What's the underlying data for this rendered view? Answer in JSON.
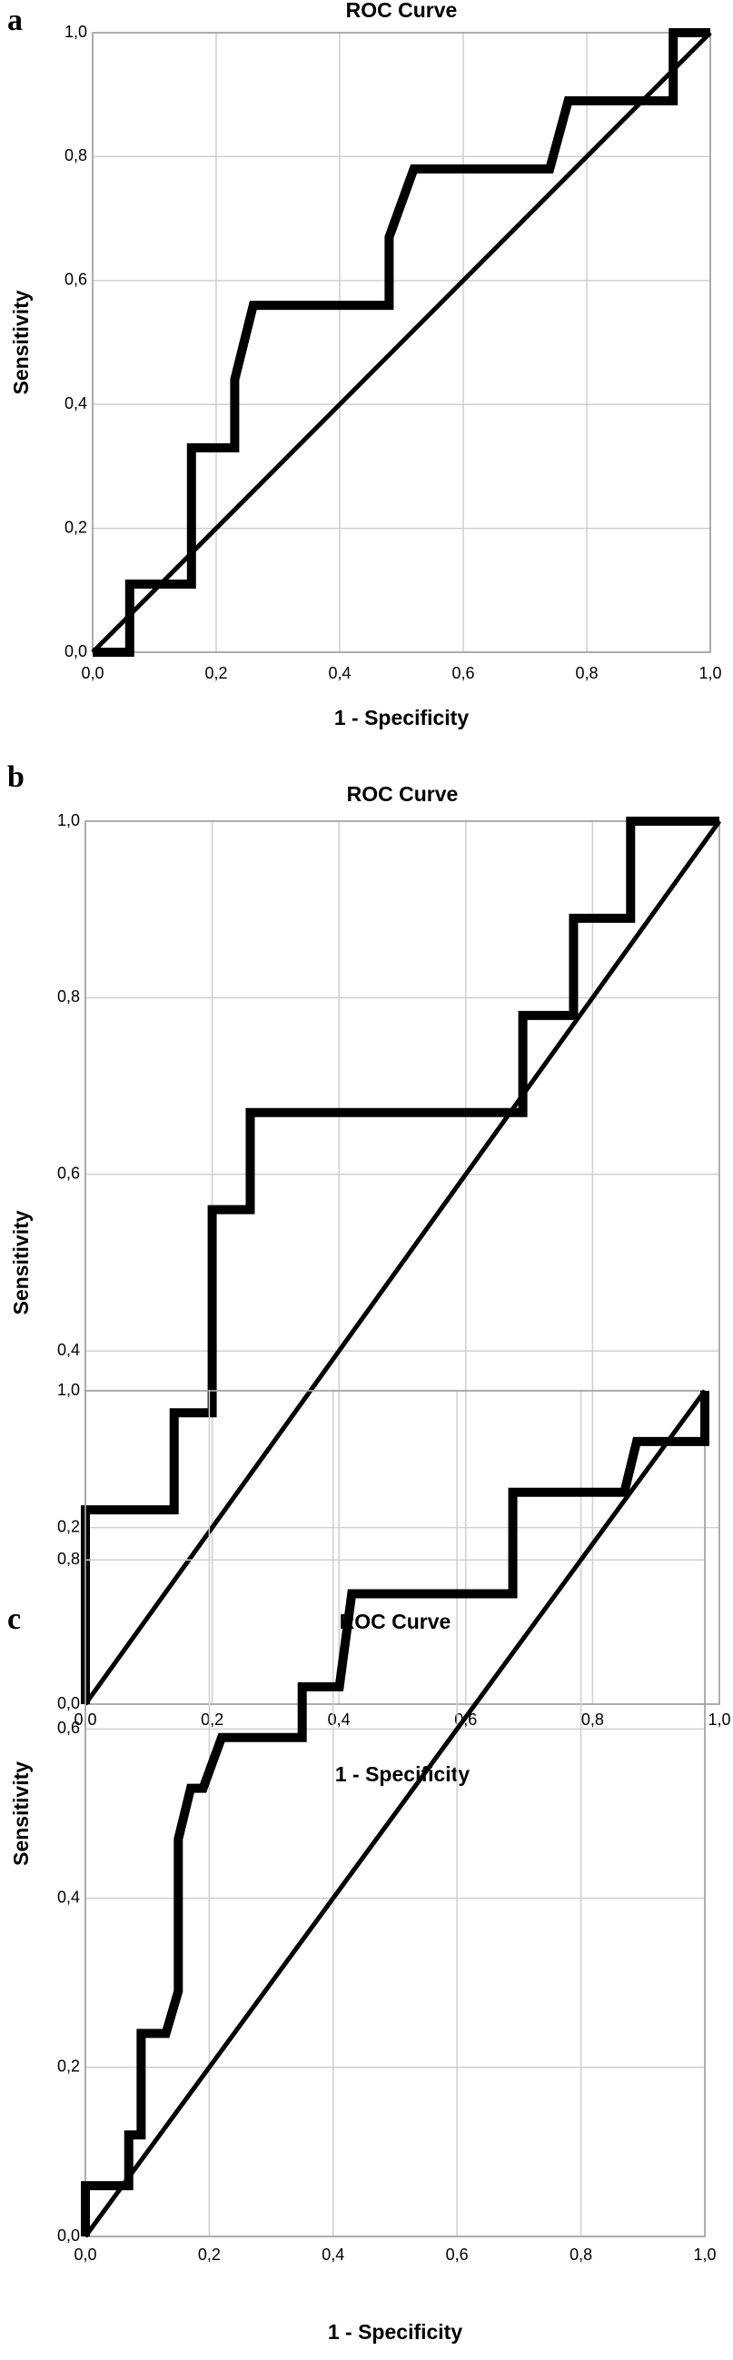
{
  "chart_data": [
    {
      "type": "line",
      "panel": "a",
      "title": "ROC Curve",
      "x_label": "1 - Specificity",
      "y_label": "Sensitivity",
      "xlim": [
        0,
        1
      ],
      "ylim": [
        0,
        1
      ],
      "grid": true,
      "xticks": [
        {
          "value": 0,
          "label": "0,0"
        },
        {
          "value": 0.2,
          "label": "0,2"
        },
        {
          "value": 0.4,
          "label": "0,4"
        },
        {
          "value": 0.6,
          "label": "0,6"
        },
        {
          "value": 0.8,
          "label": "0,8"
        },
        {
          "value": 1,
          "label": "1,0"
        }
      ],
      "yticks": [
        {
          "value": 0,
          "label": "0,0"
        },
        {
          "value": 0.2,
          "label": "0,2"
        },
        {
          "value": 0.4,
          "label": "0,4"
        },
        {
          "value": 0.6,
          "label": "0,6"
        },
        {
          "value": 0.8,
          "label": "0,8"
        },
        {
          "value": 1,
          "label": "1,0"
        }
      ],
      "series": [
        {
          "color": "#000000",
          "x": [
            0,
            0.06,
            0.06,
            0.16,
            0.16,
            0.23,
            0.23,
            0.26,
            0.48,
            0.48,
            0.52,
            0.74,
            0.77,
            0.94,
            0.94,
            1
          ],
          "values": [
            0,
            0,
            0.11,
            0.11,
            0.33,
            0.33,
            0.44,
            0.56,
            0.56,
            0.67,
            0.78,
            0.78,
            0.89,
            0.89,
            1,
            1
          ]
        },
        {
          "color": "#000000",
          "x": [
            0,
            1
          ],
          "values": [
            0,
            1
          ]
        }
      ]
    },
    {
      "type": "line",
      "panel": "b",
      "title": "ROC Curve",
      "x_label": "1 - Specificity",
      "y_label": "Sensitivity",
      "xlim": [
        0,
        1
      ],
      "ylim": [
        0,
        1
      ],
      "grid": true,
      "xticks": [
        {
          "value": 0,
          "label": "0,0"
        },
        {
          "value": 0.2,
          "label": "0,2"
        },
        {
          "value": 0.4,
          "label": "0,4"
        },
        {
          "value": 0.6,
          "label": "0,6"
        },
        {
          "value": 0.8,
          "label": "0,8"
        },
        {
          "value": 1,
          "label": "1,0"
        }
      ],
      "yticks": [
        {
          "value": 0,
          "label": "0,0"
        },
        {
          "value": 0.2,
          "label": "0,2"
        },
        {
          "value": 0.4,
          "label": "0,4"
        },
        {
          "value": 0.6,
          "label": "0,6"
        },
        {
          "value": 0.8,
          "label": "0,8"
        },
        {
          "value": 1,
          "label": "1,0"
        }
      ],
      "series": [
        {
          "color": "#000000",
          "x": [
            0,
            0,
            0.14,
            0.14,
            0.2,
            0.2,
            0.26,
            0.26,
            0.69,
            0.69,
            0.77,
            0.77,
            0.86,
            0.86,
            1
          ],
          "values": [
            0,
            0.22,
            0.22,
            0.33,
            0.33,
            0.56,
            0.56,
            0.67,
            0.67,
            0.78,
            0.78,
            0.89,
            0.89,
            1,
            1
          ]
        },
        {
          "color": "#000000",
          "x": [
            0,
            1
          ],
          "values": [
            0,
            1
          ]
        }
      ]
    },
    {
      "type": "line",
      "panel": "c",
      "title": "ROC Curve",
      "x_label": "1 - Specificity",
      "y_label": "Sensitivity",
      "xlim": [
        0,
        1
      ],
      "ylim": [
        0,
        1
      ],
      "grid": true,
      "xticks": [
        {
          "value": 0,
          "label": "0,0"
        },
        {
          "value": 0.2,
          "label": "0,2"
        },
        {
          "value": 0.4,
          "label": "0,4"
        },
        {
          "value": 0.6,
          "label": "0,6"
        },
        {
          "value": 0.8,
          "label": "0,8"
        },
        {
          "value": 1,
          "label": "1,0"
        }
      ],
      "yticks": [
        {
          "value": 0,
          "label": "0,0"
        },
        {
          "value": 0.2,
          "label": "0,2"
        },
        {
          "value": 0.4,
          "label": "0,4"
        },
        {
          "value": 0.6,
          "label": "0,6"
        },
        {
          "value": 0.8,
          "label": "0,8"
        },
        {
          "value": 1,
          "label": "1,0"
        }
      ],
      "series": [
        {
          "color": "#000000",
          "x": [
            0,
            0,
            0.07,
            0.07,
            0.09,
            0.09,
            0.13,
            0.15,
            0.15,
            0.17,
            0.19,
            0.22,
            0.35,
            0.35,
            0.41,
            0.43,
            0.69,
            0.69,
            0.87,
            0.89,
            1,
            1
          ],
          "values": [
            0,
            0.06,
            0.06,
            0.12,
            0.12,
            0.24,
            0.24,
            0.29,
            0.47,
            0.53,
            0.53,
            0.59,
            0.59,
            0.65,
            0.65,
            0.76,
            0.76,
            0.88,
            0.88,
            0.94,
            0.94,
            1
          ]
        },
        {
          "color": "#000000",
          "x": [
            0,
            1
          ],
          "values": [
            0,
            1
          ]
        }
      ]
    }
  ]
}
